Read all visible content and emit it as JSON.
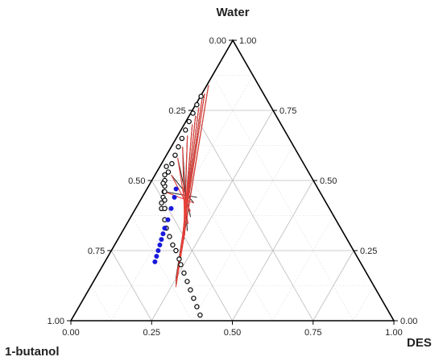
{
  "chart_data": {
    "type": "ternary",
    "vertices": {
      "top": "Water",
      "left": "1-butanol",
      "right": "DES"
    },
    "ticks": [
      0.0,
      0.25,
      0.5,
      0.75,
      1.0
    ],
    "tick_labels": {
      "bottom": [
        "0.00",
        "0.25",
        "0.50",
        "0.75",
        "1.00"
      ],
      "left": [
        "0.00",
        "0.25",
        "0.50",
        "0.75",
        "1.00"
      ],
      "right": [
        "0.00",
        "0.25",
        "0.50",
        "0.75",
        "1.00"
      ]
    },
    "grid": true,
    "colors": {
      "axis": "#000000",
      "grid": "#bbbbbb",
      "minor_grid": "#dddddd",
      "tie_line_exp": "#333333",
      "tie_line_calc": "#e8403a",
      "feed_point": "#1a1adb",
      "binodal": "#000000"
    },
    "binodal_left": [
      {
        "des": 0.08,
        "water": 0.4
      },
      {
        "des": 0.07,
        "water": 0.42
      },
      {
        "des": 0.065,
        "water": 0.44
      },
      {
        "des": 0.058,
        "water": 0.46
      },
      {
        "des": 0.05,
        "water": 0.48
      },
      {
        "des": 0.04,
        "water": 0.5
      },
      {
        "des": 0.036,
        "water": 0.53
      },
      {
        "des": 0.032,
        "water": 0.56
      },
      {
        "des": 0.027,
        "water": 0.59
      },
      {
        "des": 0.022,
        "water": 0.62
      },
      {
        "des": 0.018,
        "water": 0.65
      },
      {
        "des": 0.014,
        "water": 0.68
      },
      {
        "des": 0.01,
        "water": 0.71
      },
      {
        "des": 0.007,
        "water": 0.74
      },
      {
        "des": 0.004,
        "water": 0.77
      },
      {
        "des": 0.002,
        "water": 0.8
      }
    ],
    "binodal_right": [
      {
        "des": 0.02,
        "water": 0.55
      },
      {
        "des": 0.03,
        "water": 0.52
      },
      {
        "des": 0.04,
        "water": 0.49
      },
      {
        "des": 0.06,
        "water": 0.46
      },
      {
        "des": 0.075,
        "water": 0.43
      },
      {
        "des": 0.09,
        "water": 0.4
      },
      {
        "des": 0.11,
        "water": 0.36
      },
      {
        "des": 0.13,
        "water": 0.33
      },
      {
        "des": 0.155,
        "water": 0.3
      },
      {
        "des": 0.18,
        "water": 0.27
      },
      {
        "des": 0.2,
        "water": 0.25
      },
      {
        "des": 0.225,
        "water": 0.22
      },
      {
        "des": 0.24,
        "water": 0.2
      },
      {
        "des": 0.265,
        "water": 0.17
      },
      {
        "des": 0.29,
        "water": 0.14
      },
      {
        "des": 0.315,
        "water": 0.11
      },
      {
        "des": 0.34,
        "water": 0.08
      },
      {
        "des": 0.365,
        "water": 0.05
      },
      {
        "des": 0.39,
        "water": 0.02
      }
    ],
    "tie_lines_experimental": [
      {
        "org": {
          "des": 0.06,
          "water": 0.46
        },
        "aq": {
          "des": 0.17,
          "water": 0.44
        }
      },
      {
        "org": {
          "des": 0.05,
          "water": 0.52
        },
        "aq": {
          "des": 0.17,
          "water": 0.42
        }
      },
      {
        "org": {
          "des": 0.04,
          "water": 0.58
        },
        "aq": {
          "des": 0.185,
          "water": 0.37
        }
      },
      {
        "org": {
          "des": 0.035,
          "water": 0.62
        },
        "aq": {
          "des": 0.2,
          "water": 0.32
        }
      },
      {
        "org": {
          "des": 0.03,
          "water": 0.66
        },
        "aq": {
          "des": 0.205,
          "water": 0.29
        }
      },
      {
        "org": {
          "des": 0.025,
          "water": 0.7
        },
        "aq": {
          "des": 0.215,
          "water": 0.26
        }
      },
      {
        "org": {
          "des": 0.02,
          "water": 0.73
        },
        "aq": {
          "des": 0.225,
          "water": 0.23
        }
      },
      {
        "org": {
          "des": 0.015,
          "water": 0.76
        },
        "aq": {
          "des": 0.235,
          "water": 0.2
        }
      },
      {
        "org": {
          "des": 0.01,
          "water": 0.79
        },
        "aq": {
          "des": 0.245,
          "water": 0.17
        }
      },
      {
        "org": {
          "des": 0.008,
          "water": 0.81
        },
        "aq": {
          "des": 0.25,
          "water": 0.15
        }
      },
      {
        "org": {
          "des": 0.005,
          "water": 0.84
        },
        "aq": {
          "des": 0.26,
          "water": 0.13
        }
      }
    ],
    "tie_lines_calculated": [
      {
        "org": {
          "des": 0.06,
          "water": 0.46
        },
        "aq": {
          "des": 0.17,
          "water": 0.42
        }
      },
      {
        "org": {
          "des": 0.05,
          "water": 0.52
        },
        "aq": {
          "des": 0.175,
          "water": 0.39
        }
      },
      {
        "org": {
          "des": 0.04,
          "water": 0.58
        },
        "aq": {
          "des": 0.19,
          "water": 0.345
        }
      },
      {
        "org": {
          "des": 0.035,
          "water": 0.62
        },
        "aq": {
          "des": 0.2,
          "water": 0.305
        }
      },
      {
        "org": {
          "des": 0.03,
          "water": 0.66
        },
        "aq": {
          "des": 0.21,
          "water": 0.275
        }
      },
      {
        "org": {
          "des": 0.025,
          "water": 0.7
        },
        "aq": {
          "des": 0.22,
          "water": 0.245
        }
      },
      {
        "org": {
          "des": 0.02,
          "water": 0.73
        },
        "aq": {
          "des": 0.23,
          "water": 0.215
        }
      },
      {
        "org": {
          "des": 0.015,
          "water": 0.76
        },
        "aq": {
          "des": 0.24,
          "water": 0.185
        }
      },
      {
        "org": {
          "des": 0.01,
          "water": 0.79
        },
        "aq": {
          "des": 0.25,
          "water": 0.16
        }
      },
      {
        "org": {
          "des": 0.008,
          "water": 0.81
        },
        "aq": {
          "des": 0.255,
          "water": 0.14
        }
      },
      {
        "org": {
          "des": 0.005,
          "water": 0.84
        },
        "aq": {
          "des": 0.265,
          "water": 0.12
        }
      }
    ],
    "feed_points": [
      {
        "des": 0.09,
        "water": 0.47
      },
      {
        "des": 0.1,
        "water": 0.44
      },
      {
        "des": 0.11,
        "water": 0.4
      },
      {
        "des": 0.12,
        "water": 0.36
      },
      {
        "des": 0.125,
        "water": 0.33
      },
      {
        "des": 0.13,
        "water": 0.31
      },
      {
        "des": 0.135,
        "water": 0.29
      },
      {
        "des": 0.14,
        "water": 0.27
      },
      {
        "des": 0.145,
        "water": 0.25
      },
      {
        "des": 0.15,
        "water": 0.23
      },
      {
        "des": 0.155,
        "water": 0.21
      }
    ]
  }
}
